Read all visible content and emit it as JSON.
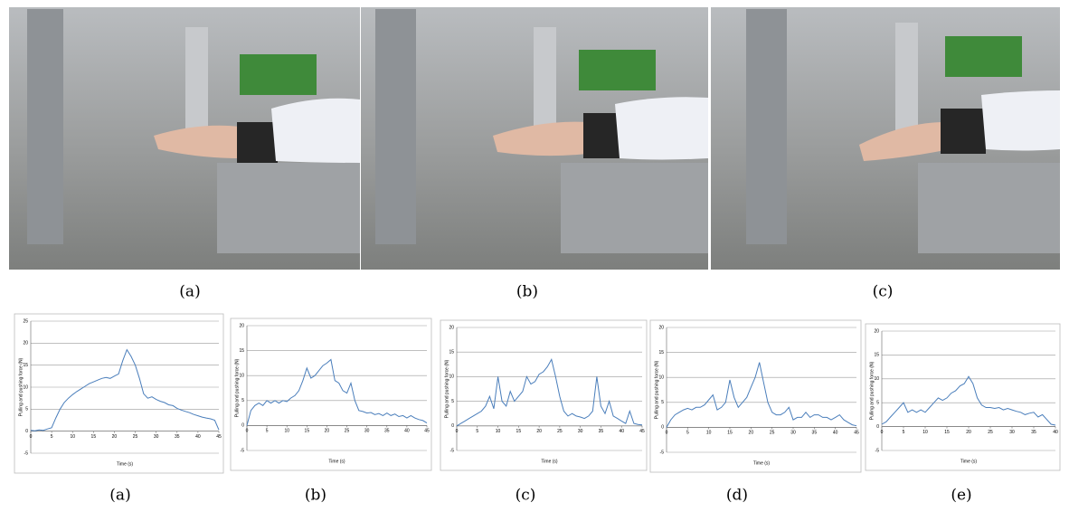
{
  "photos": [
    {
      "caption": "(a)"
    },
    {
      "caption": "(b)"
    },
    {
      "caption": "(c)"
    }
  ],
  "chart_data": [
    {
      "type": "line",
      "caption": "(a)",
      "x_label": "Time (s)",
      "y_label": "Pulling and pushing force (N)",
      "color": "#4a7ebb",
      "grid": true,
      "xlim": [
        0,
        45
      ],
      "xticks": [
        0,
        5,
        10,
        15,
        20,
        25,
        30,
        35,
        40,
        45
      ],
      "ylim": [
        -5,
        25
      ],
      "yticks": [
        -5,
        0,
        5,
        10,
        15,
        20,
        25
      ],
      "x": [
        0,
        1,
        2,
        3,
        4,
        5,
        6,
        7,
        8,
        9,
        10,
        11,
        12,
        13,
        14,
        15,
        16,
        17,
        18,
        19,
        20,
        21,
        22,
        23,
        24,
        25,
        26,
        27,
        28,
        29,
        30,
        31,
        32,
        33,
        34,
        35,
        36,
        37,
        38,
        39,
        40,
        41,
        42,
        43,
        44,
        45
      ],
      "values": [
        0.2,
        0.1,
        0.3,
        0.2,
        0.5,
        0.8,
        3,
        5,
        6.5,
        7.5,
        8.3,
        9,
        9.6,
        10.2,
        10.8,
        11.2,
        11.6,
        12,
        12.2,
        12,
        12.5,
        13,
        16,
        18.5,
        17,
        15,
        12,
        8.5,
        7.5,
        7.8,
        7.2,
        6.8,
        6.5,
        6,
        5.8,
        5.2,
        4.8,
        4.5,
        4.2,
        3.8,
        3.5,
        3.2,
        3,
        2.8,
        2.5,
        0.3
      ]
    },
    {
      "type": "line",
      "caption": "(b)",
      "x_label": "Time (s)",
      "y_label": "Pulling and pushing force (N)",
      "color": "#4a7ebb",
      "grid": true,
      "xlim": [
        0,
        45
      ],
      "xticks": [
        0,
        5,
        10,
        15,
        20,
        25,
        30,
        35,
        40,
        45
      ],
      "ylim": [
        -5,
        20
      ],
      "yticks": [
        -5,
        0,
        5,
        10,
        15,
        20
      ],
      "x": [
        0,
        1,
        2,
        3,
        4,
        5,
        6,
        7,
        8,
        9,
        10,
        11,
        12,
        13,
        14,
        15,
        16,
        17,
        18,
        19,
        20,
        21,
        22,
        23,
        24,
        25,
        26,
        27,
        28,
        29,
        30,
        31,
        32,
        33,
        34,
        35,
        36,
        37,
        38,
        39,
        40,
        41,
        42,
        43,
        44,
        45
      ],
      "values": [
        0,
        3,
        4,
        4.5,
        4,
        5,
        4.5,
        5,
        4.5,
        5,
        4.8,
        5.5,
        6,
        7,
        9,
        11.5,
        9.5,
        10,
        11,
        12,
        12.5,
        13.2,
        9,
        8.5,
        7,
        6.5,
        8.5,
        5,
        3,
        2.8,
        2.5,
        2.6,
        2.2,
        2.4,
        2,
        2.5,
        2,
        2.3,
        1.8,
        2,
        1.5,
        2,
        1.5,
        1.2,
        1,
        0.5
      ]
    },
    {
      "type": "line",
      "caption": "(c)",
      "x_label": "Time (s)",
      "y_label": "Pulling and pushing force (N)",
      "color": "#4a7ebb",
      "grid": true,
      "xlim": [
        0,
        45
      ],
      "xticks": [
        0,
        5,
        10,
        15,
        20,
        25,
        30,
        35,
        40,
        45
      ],
      "ylim": [
        -5,
        20
      ],
      "yticks": [
        -5,
        0,
        5,
        10,
        15,
        20
      ],
      "x": [
        0,
        1,
        2,
        3,
        4,
        5,
        6,
        7,
        8,
        9,
        10,
        11,
        12,
        13,
        14,
        15,
        16,
        17,
        18,
        19,
        20,
        21,
        22,
        23,
        24,
        25,
        26,
        27,
        28,
        29,
        30,
        31,
        32,
        33,
        34,
        35,
        36,
        37,
        38,
        39,
        40,
        41,
        42,
        43,
        44,
        45
      ],
      "values": [
        0,
        0.5,
        1,
        1.5,
        2,
        2.5,
        3,
        4,
        6,
        3.5,
        10,
        5,
        4,
        7,
        5,
        6,
        7,
        10,
        8.5,
        9,
        10.5,
        11,
        12,
        13.5,
        10,
        6,
        3,
        2,
        2.5,
        2,
        1.8,
        1.5,
        2,
        3,
        10,
        4,
        2.5,
        5,
        2,
        1.5,
        1,
        0.5,
        3,
        0.5,
        0.3,
        0.2
      ]
    },
    {
      "type": "line",
      "caption": "(d)",
      "x_label": "Time (s)",
      "y_label": "Pulling and pushing force (N)",
      "color": "#4a7ebb",
      "grid": true,
      "xlim": [
        0,
        45
      ],
      "xticks": [
        0,
        5,
        10,
        15,
        20,
        25,
        30,
        35,
        40,
        45
      ],
      "ylim": [
        -5,
        20
      ],
      "yticks": [
        -5,
        0,
        5,
        10,
        15,
        20
      ],
      "x": [
        0,
        1,
        2,
        3,
        4,
        5,
        6,
        7,
        8,
        9,
        10,
        11,
        12,
        13,
        14,
        15,
        16,
        17,
        18,
        19,
        20,
        21,
        22,
        23,
        24,
        25,
        26,
        27,
        28,
        29,
        30,
        31,
        32,
        33,
        34,
        35,
        36,
        37,
        38,
        39,
        40,
        41,
        42,
        43,
        44,
        45
      ],
      "values": [
        0,
        1.5,
        2.5,
        3,
        3.5,
        3.8,
        3.5,
        4,
        4,
        4.5,
        5.5,
        6.5,
        3.5,
        4,
        5,
        9.5,
        6,
        4,
        5,
        6,
        8,
        10,
        13,
        9,
        5,
        3,
        2.5,
        2.5,
        3,
        4,
        1.5,
        2,
        2,
        3,
        2,
        2.5,
        2.5,
        2,
        2,
        1.5,
        2,
        2.5,
        1.5,
        1,
        0.5,
        0.3
      ]
    },
    {
      "type": "line",
      "caption": "(e)",
      "x_label": "Time (s)",
      "y_label": "Pulling and pushing force (N)",
      "color": "#4a7ebb",
      "grid": true,
      "xlim": [
        0,
        40
      ],
      "xticks": [
        0,
        5,
        10,
        15,
        20,
        25,
        30,
        35,
        40
      ],
      "ylim": [
        -5,
        20
      ],
      "yticks": [
        -5,
        0,
        5,
        10,
        15,
        20
      ],
      "x": [
        0,
        1,
        2,
        3,
        4,
        5,
        6,
        7,
        8,
        9,
        10,
        11,
        12,
        13,
        14,
        15,
        16,
        17,
        18,
        19,
        20,
        21,
        22,
        23,
        24,
        25,
        26,
        27,
        28,
        29,
        30,
        31,
        32,
        33,
        34,
        35,
        36,
        37,
        38,
        39,
        40
      ],
      "values": [
        0.5,
        1,
        2,
        3,
        4,
        5,
        3,
        3.5,
        3,
        3.5,
        3,
        4,
        5,
        6,
        5.5,
        6,
        7,
        7.5,
        8.5,
        9,
        10.5,
        9,
        6,
        4.5,
        4,
        4,
        3.8,
        4,
        3.5,
        3.8,
        3.5,
        3.2,
        3,
        2.5,
        2.8,
        3,
        2,
        2.5,
        1.5,
        0.5,
        0.3
      ]
    }
  ]
}
